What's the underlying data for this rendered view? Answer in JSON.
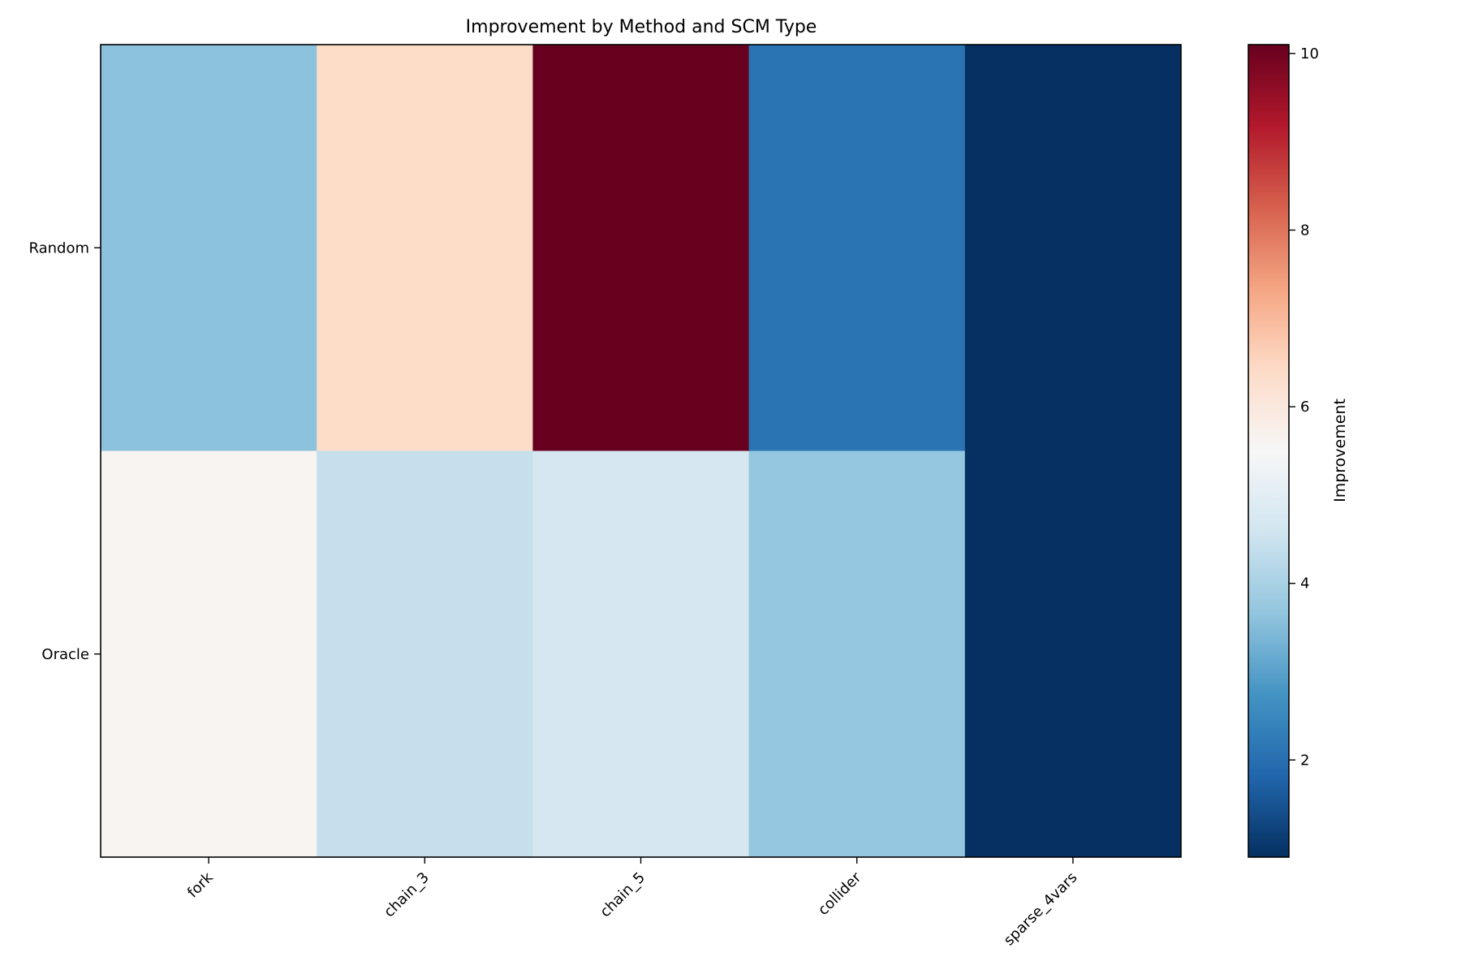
{
  "chart_data": {
    "type": "heatmap",
    "title": "Improvement by Method and SCM Type",
    "xlabel": "",
    "ylabel": "",
    "x_categories": [
      "fork",
      "chain_3",
      "chain_5",
      "collider",
      "sparse_4vars"
    ],
    "y_categories": [
      "Random",
      "Oracle"
    ],
    "values": [
      [
        3.6,
        6.4,
        10.1,
        2.1,
        0.9
      ],
      [
        5.6,
        4.4,
        4.7,
        3.7,
        0.9
      ]
    ],
    "colormap": "RdBu_r",
    "color_range": [
      0.9,
      10.1
    ],
    "colorbar": {
      "label": "Improvement",
      "ticks": [
        2,
        4,
        6,
        8,
        10
      ],
      "tick_labels": [
        "2",
        "4",
        "6",
        "8",
        "10"
      ]
    },
    "grid": false,
    "legend": "none"
  }
}
